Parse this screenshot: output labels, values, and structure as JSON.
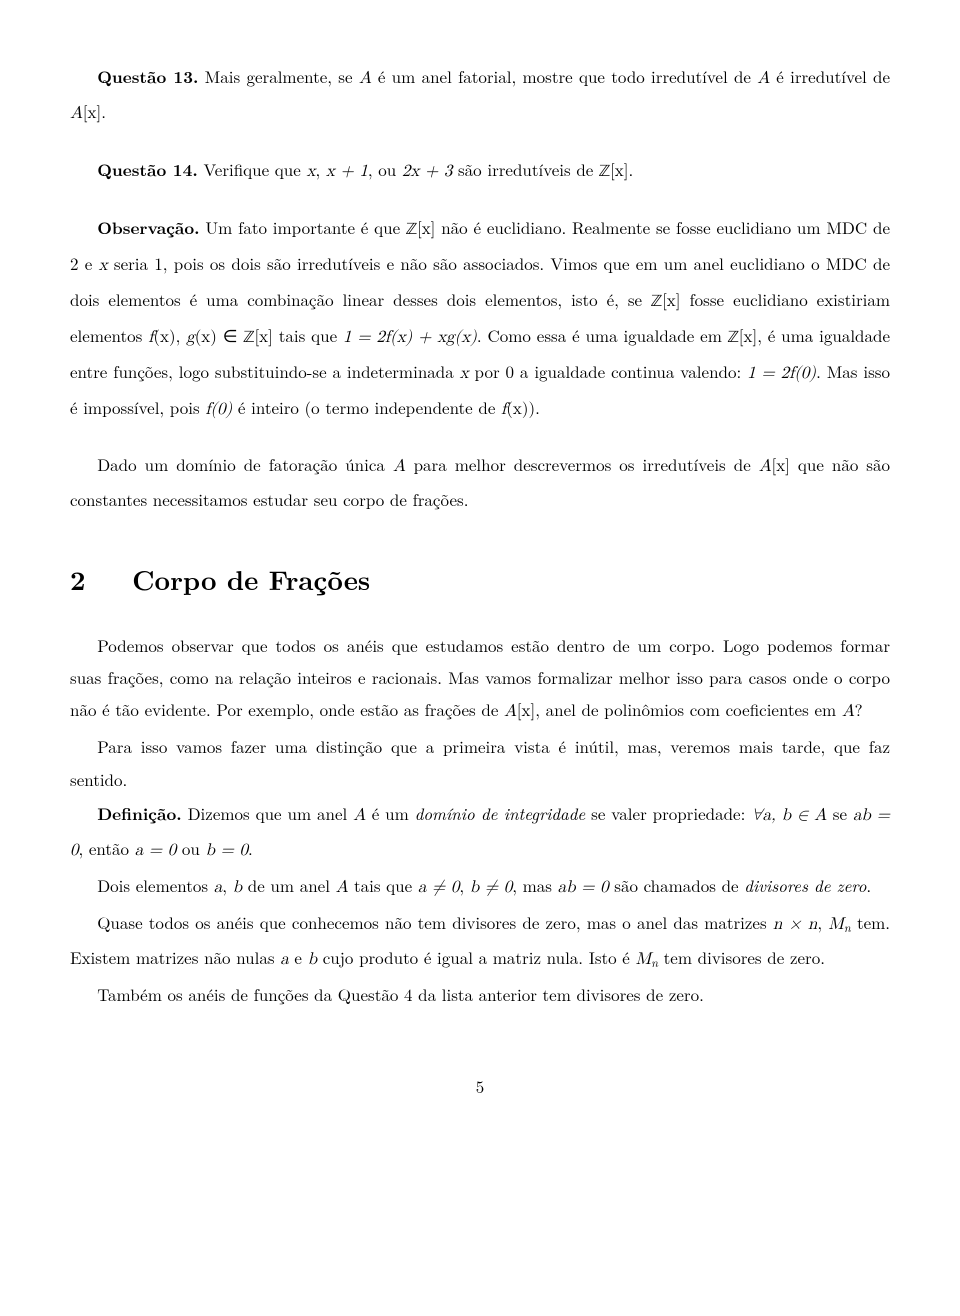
{
  "q13": {
    "label": "Questão 13.",
    "text_a": " Mais geralmente, se ",
    "A": "A",
    "text_b": " é um anel fatorial, mostre que todo irredutível de ",
    "text_c": " é irredutível de ",
    "Ax": "A",
    "Ax_br": "[x]",
    "period": "."
  },
  "q14": {
    "label": "Questão 14.",
    "text_a": " Verifique que ",
    "x": "x",
    "comma1": ", ",
    "xp1": "x + 1",
    "comma2": ", ou ",
    "tx3": "2x + 3",
    "text_b": " são irredutíveis de ",
    "Z": "ℤ",
    "br": "[x]",
    "period": "."
  },
  "obs": {
    "label": "Observação.",
    "s1": " Um fato importante é que ",
    "Zx": "ℤ",
    "br": "[x]",
    "s2": " não é euclidiano. Realmente se fosse euclidiano um MDC de 2 e ",
    "x": "x",
    "s3": " seria 1, pois os dois são irredutíveis e não são associados. Vimos que em um anel euclidiano o MDC de dois elementos é uma combinação linear desses dois elementos, isto é, se ",
    "s4": " fosse euclidiano existiriam elementos ",
    "fx": "f",
    "gx": "g",
    "par_x": "(x)",
    "s5": ", ",
    "s6": " ∈ ",
    "s7": " tais que ",
    "eq1": "1 = 2f(x) + xg(x)",
    "s8": ". Como essa é uma igualdade em ",
    "s9": ", é uma igualdade entre funções, logo substituindo-se a indeterminada ",
    "s10": " por 0 a igualdade continua valendo: ",
    "eq2": "1 = 2f(0)",
    "s11": ". Mas isso é impossível, pois ",
    "f0": "f(0)",
    "s12": " é inteiro (o termo independente de ",
    "s13": ")."
  },
  "bridge": {
    "s1": "Dado um domínio de fatoração única ",
    "A": "A",
    "s2": " para melhor descrevermos os irredutíveis de ",
    "Ax": "A",
    "br": "[x]",
    "s3": " que não são constantes necessitamos estudar seu corpo de frações."
  },
  "section2": {
    "num": "2",
    "title": "Corpo de Frações"
  },
  "p1": {
    "s1": "Podemos observar que todos os anéis que estudamos estão dentro de um corpo. Logo podemos formar suas frações, como na relação inteiros e racionais. Mas vamos formalizar melhor isso para casos onde o corpo não é tão evidente. Por exemplo, onde estão as frações de ",
    "Ax": "A",
    "br": "[x]",
    "s2": ", anel de polinômios com coeficientes em ",
    "A": "A",
    "s3": "?"
  },
  "p2": {
    "s1": "Para isso vamos fazer uma distinção que a primeira vista é inútil, mas, veremos mais tarde, que faz sentido."
  },
  "def": {
    "label": "Definição.",
    "s1": " Dizemos que um anel ",
    "A": "A",
    "s2": " é um ",
    "term": "domínio de integridade",
    "s3": " se valer propriedade: ",
    "forall": "∀a, b ∈ A",
    "s4": " se ",
    "ab0": "ab = 0",
    "s5": ", então ",
    "a0": "a = 0",
    "s6": " ou ",
    "b0": "b = 0",
    "period": "."
  },
  "p3": {
    "s1": "Dois elementos ",
    "a": "a",
    "s2": ", ",
    "b": "b",
    "s3": " de um anel ",
    "A": "A",
    "s4": " tais que ",
    "ane0": "a ≠ 0",
    "s5": ", ",
    "bne0": "b ≠ 0",
    "s6": ", mas ",
    "ab0": "ab = 0",
    "s7": " são chamados de ",
    "term": "divisores de zero",
    "period": "."
  },
  "p4": {
    "s1": "Quase todos os anéis que conhecemos não tem divisores de zero, mas o anel das matrizes ",
    "nxn": "n × n",
    "s2": ", ",
    "Mn": "M",
    "n": "n",
    "s3": " tem. Existem matrizes não nulas ",
    "a": "a",
    "s4": " e ",
    "b": "b",
    "s5": " cujo produto é igual a matriz nula. Isto é ",
    "s6": " tem divisores de zero."
  },
  "p5": {
    "s1": "Também os anéis de funções da Questão 4 da lista anterior tem divisores de zero."
  },
  "page": "5"
}
